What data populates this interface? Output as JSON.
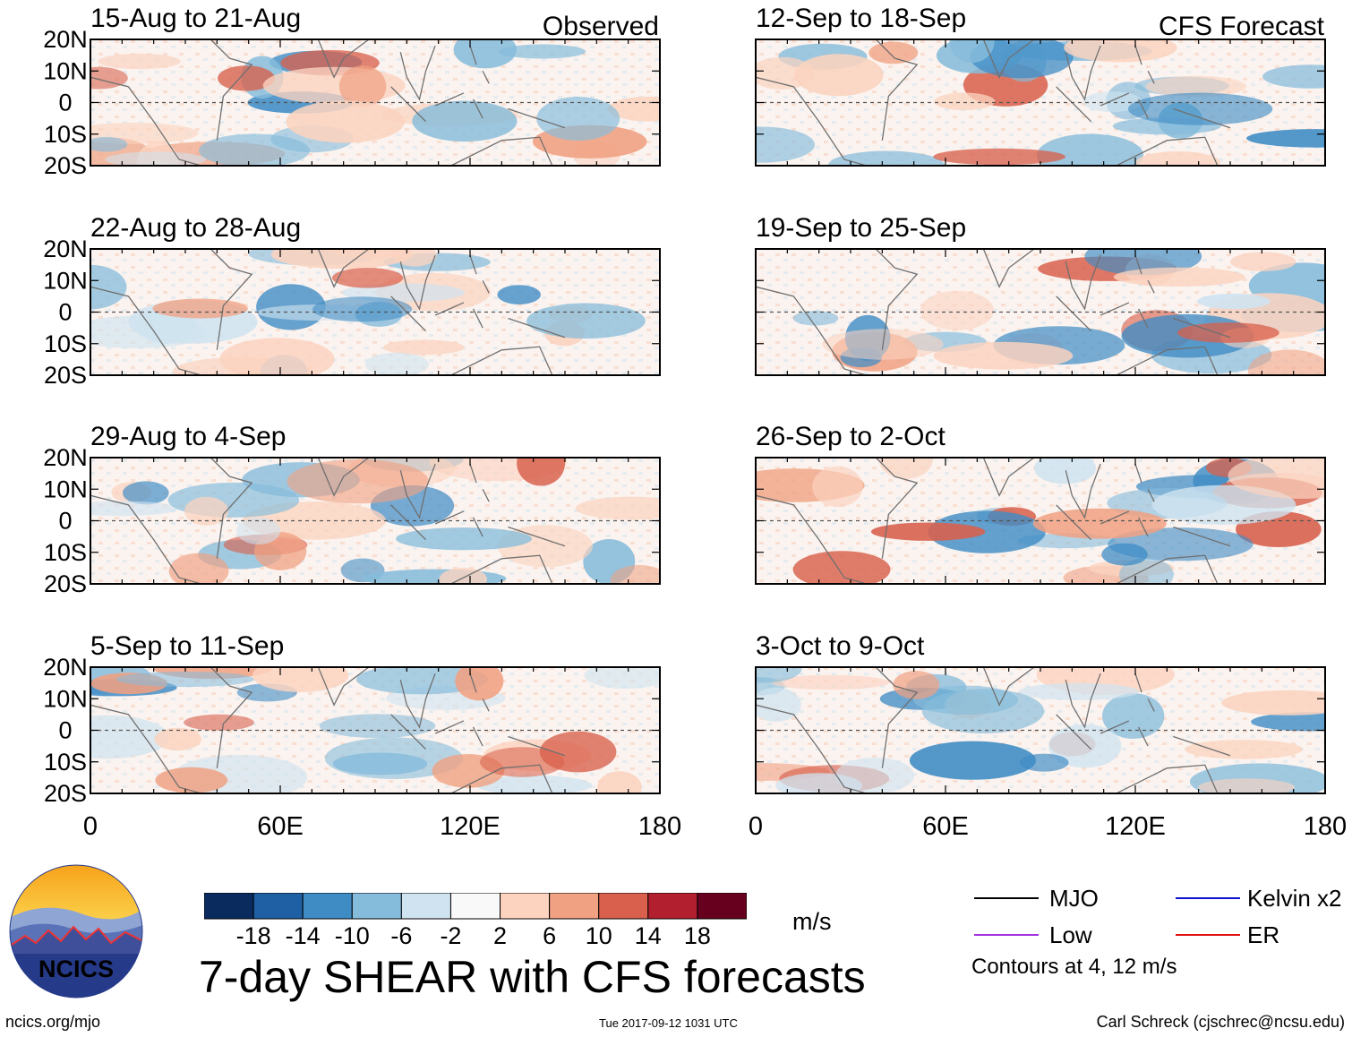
{
  "chart_data": {
    "type": "heatmap",
    "title": "7-day SHEAR with CFS forecasts",
    "units": "m/s",
    "xlim": [
      0,
      180
    ],
    "ylim": [
      -20,
      20
    ],
    "x_ticks": [
      "0",
      "60E",
      "120E",
      "180"
    ],
    "y_ticks": [
      "20N",
      "10N",
      "0",
      "10S",
      "20S"
    ],
    "colorbar": {
      "ticks": [
        "-18",
        "-14",
        "-10",
        "-6",
        "-2",
        "2",
        "6",
        "10",
        "14",
        "18"
      ],
      "colors": [
        "#0a2b5e",
        "#1f5fa3",
        "#3f8cc5",
        "#86bcdb",
        "#cfe3f0",
        "#f9f9f9",
        "#fbd3bf",
        "#f0a182",
        "#d8604c",
        "#b2202f",
        "#67001f"
      ]
    },
    "legend": [
      {
        "label": "MJO",
        "color": "#000000"
      },
      {
        "label": "Kelvin x2",
        "color": "#1010d0"
      },
      {
        "label": "Low",
        "color": "#a030e0"
      },
      {
        "label": "ER",
        "color": "#e01010"
      }
    ],
    "contour_note": "Contours at 4, 12 m/s",
    "panels": [
      {
        "title": "15-Aug to 21-Aug",
        "tag": "Observed",
        "column": "left",
        "row": 1
      },
      {
        "title": "22-Aug to 28-Aug",
        "tag": "",
        "column": "left",
        "row": 2
      },
      {
        "title": "29-Aug to 4-Sep",
        "tag": "",
        "column": "left",
        "row": 3
      },
      {
        "title": "5-Sep to 11-Sep",
        "tag": "",
        "column": "left",
        "row": 4
      },
      {
        "title": "12-Sep to 18-Sep",
        "tag": "CFS Forecast",
        "column": "right",
        "row": 1
      },
      {
        "title": "19-Sep to 25-Sep",
        "tag": "",
        "column": "right",
        "row": 2
      },
      {
        "title": "26-Sep to 2-Oct",
        "tag": "",
        "column": "right",
        "row": 3
      },
      {
        "title": "3-Oct to 9-Oct",
        "tag": "",
        "column": "right",
        "row": 4
      }
    ]
  },
  "logo": {
    "text": "NCICS"
  },
  "footer": {
    "url": "ncics.org/mjo",
    "timestamp": "Tue 2017-09-12 1031 UTC",
    "credit": "Carl Schreck (cjschrec@ncsu.edu)"
  }
}
